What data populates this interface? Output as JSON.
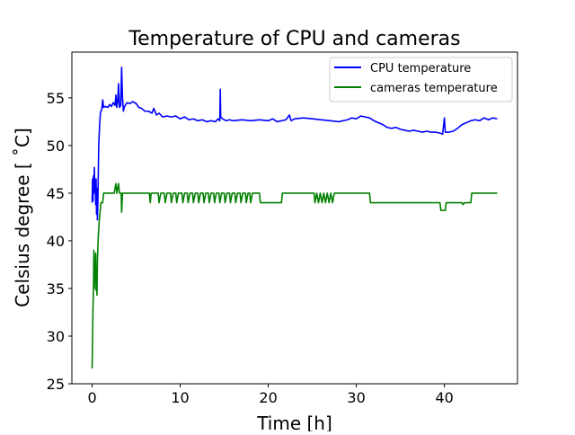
{
  "chart_data": {
    "type": "line",
    "title": "Temperature of CPU and cameras",
    "xlabel": "Time [h]",
    "ylabel": "Celsius degree [ ˚C]",
    "xlim": [
      -2.3,
      48.3
    ],
    "ylim": [
      25,
      59.8
    ],
    "xticks": [
      0,
      10,
      20,
      30,
      40
    ],
    "yticks": [
      25,
      30,
      35,
      40,
      45,
      50,
      55
    ],
    "grid": false,
    "legend_position": "top-right",
    "series": [
      {
        "name": "CPU temperature",
        "color": "#0000ff",
        "points": [
          [
            0.0,
            44.0
          ],
          [
            0.05,
            46.5
          ],
          [
            0.1,
            44.2
          ],
          [
            0.15,
            46.8
          ],
          [
            0.2,
            45.0
          ],
          [
            0.25,
            47.7
          ],
          [
            0.3,
            45.5
          ],
          [
            0.35,
            46.0
          ],
          [
            0.4,
            43.8
          ],
          [
            0.45,
            46.5
          ],
          [
            0.5,
            42.8
          ],
          [
            0.55,
            45.5
          ],
          [
            0.6,
            42.2
          ],
          [
            0.65,
            44.0
          ],
          [
            0.7,
            47.0
          ],
          [
            0.75,
            50.0
          ],
          [
            0.85,
            52.2
          ],
          [
            0.95,
            53.5
          ],
          [
            1.1,
            53.8
          ],
          [
            1.2,
            54.8
          ],
          [
            1.3,
            54.0
          ],
          [
            1.5,
            54.1
          ],
          [
            1.8,
            54.0
          ],
          [
            2.0,
            54.3
          ],
          [
            2.2,
            54.1
          ],
          [
            2.4,
            54.5
          ],
          [
            2.6,
            54.2
          ],
          [
            2.7,
            55.3
          ],
          [
            2.8,
            54.0
          ],
          [
            2.9,
            54.6
          ],
          [
            3.0,
            56.5
          ],
          [
            3.1,
            54.0
          ],
          [
            3.25,
            54.2
          ],
          [
            3.35,
            58.2
          ],
          [
            3.45,
            55.0
          ],
          [
            3.55,
            53.6
          ],
          [
            3.65,
            54.0
          ],
          [
            3.8,
            54.3
          ],
          [
            4.0,
            54.5
          ],
          [
            4.3,
            54.4
          ],
          [
            4.6,
            54.6
          ],
          [
            5.0,
            54.4
          ],
          [
            5.3,
            54.0
          ],
          [
            5.6,
            53.9
          ],
          [
            6.0,
            53.6
          ],
          [
            6.4,
            53.6
          ],
          [
            6.8,
            53.4
          ],
          [
            7.0,
            53.9
          ],
          [
            7.3,
            53.2
          ],
          [
            7.6,
            53.4
          ],
          [
            8.0,
            53.0
          ],
          [
            8.5,
            53.1
          ],
          [
            9.0,
            53.0
          ],
          [
            9.5,
            53.1
          ],
          [
            10.0,
            52.8
          ],
          [
            10.5,
            53.0
          ],
          [
            11.0,
            52.7
          ],
          [
            11.5,
            52.8
          ],
          [
            12.0,
            52.6
          ],
          [
            12.5,
            52.7
          ],
          [
            13.0,
            52.5
          ],
          [
            13.5,
            52.6
          ],
          [
            14.0,
            52.5
          ],
          [
            14.3,
            52.8
          ],
          [
            14.5,
            52.6
          ],
          [
            14.55,
            55.9
          ],
          [
            14.6,
            53.0
          ],
          [
            14.8,
            52.8
          ],
          [
            15.2,
            52.6
          ],
          [
            15.6,
            52.7
          ],
          [
            16.0,
            52.6
          ],
          [
            17.0,
            52.7
          ],
          [
            18.0,
            52.6
          ],
          [
            19.0,
            52.7
          ],
          [
            20.0,
            52.6
          ],
          [
            20.5,
            52.8
          ],
          [
            21.0,
            52.5
          ],
          [
            22.0,
            52.7
          ],
          [
            22.4,
            53.2
          ],
          [
            22.6,
            52.6
          ],
          [
            23.0,
            52.8
          ],
          [
            24.0,
            52.9
          ],
          [
            25.0,
            52.8
          ],
          [
            26.0,
            52.7
          ],
          [
            27.0,
            52.6
          ],
          [
            28.0,
            52.5
          ],
          [
            29.0,
            52.7
          ],
          [
            29.5,
            52.9
          ],
          [
            30.0,
            52.8
          ],
          [
            30.5,
            53.1
          ],
          [
            31.0,
            53.0
          ],
          [
            31.5,
            52.9
          ],
          [
            32.0,
            52.6
          ],
          [
            32.5,
            52.4
          ],
          [
            33.0,
            52.2
          ],
          [
            33.5,
            51.9
          ],
          [
            34.0,
            51.8
          ],
          [
            34.5,
            51.9
          ],
          [
            35.0,
            51.7
          ],
          [
            35.5,
            51.6
          ],
          [
            36.0,
            51.5
          ],
          [
            36.5,
            51.6
          ],
          [
            37.0,
            51.5
          ],
          [
            37.5,
            51.4
          ],
          [
            38.0,
            51.5
          ],
          [
            38.5,
            51.4
          ],
          [
            39.0,
            51.4
          ],
          [
            39.5,
            51.3
          ],
          [
            39.8,
            51.2
          ],
          [
            40.0,
            52.9
          ],
          [
            40.1,
            51.4
          ],
          [
            40.5,
            51.4
          ],
          [
            41.0,
            51.5
          ],
          [
            41.5,
            51.8
          ],
          [
            42.0,
            52.2
          ],
          [
            42.5,
            52.4
          ],
          [
            43.0,
            52.6
          ],
          [
            43.5,
            52.7
          ],
          [
            44.0,
            52.6
          ],
          [
            44.5,
            52.9
          ],
          [
            45.0,
            52.7
          ],
          [
            45.5,
            52.9
          ],
          [
            46.0,
            52.8
          ]
        ]
      },
      {
        "name": "cameras temperature",
        "color": "#008000",
        "points": [
          [
            0.0,
            26.6
          ],
          [
            0.05,
            30.0
          ],
          [
            0.1,
            33.0
          ],
          [
            0.15,
            35.0
          ],
          [
            0.2,
            39.0
          ],
          [
            0.25,
            35.0
          ],
          [
            0.3,
            38.0
          ],
          [
            0.35,
            36.0
          ],
          [
            0.4,
            38.7
          ],
          [
            0.45,
            34.8
          ],
          [
            0.5,
            36.5
          ],
          [
            0.55,
            34.3
          ],
          [
            0.6,
            38.0
          ],
          [
            0.7,
            40.5
          ],
          [
            0.8,
            42.0
          ],
          [
            0.9,
            43.0
          ],
          [
            1.0,
            44.0
          ],
          [
            1.2,
            44.0
          ],
          [
            1.3,
            45.0
          ],
          [
            1.8,
            45.0
          ],
          [
            2.0,
            45.0
          ],
          [
            2.5,
            45.0
          ],
          [
            2.7,
            46.0
          ],
          [
            2.8,
            45.0
          ],
          [
            3.0,
            46.0
          ],
          [
            3.1,
            45.0
          ],
          [
            3.3,
            45.0
          ],
          [
            3.35,
            43.0
          ],
          [
            3.45,
            45.0
          ],
          [
            3.6,
            45.0
          ],
          [
            4.0,
            45.0
          ],
          [
            5.0,
            45.0
          ],
          [
            6.0,
            45.0
          ],
          [
            6.5,
            45.0
          ],
          [
            6.6,
            44.0
          ],
          [
            6.7,
            45.0
          ],
          [
            7.0,
            45.0
          ],
          [
            7.5,
            45.0
          ],
          [
            7.6,
            44.0
          ],
          [
            7.8,
            45.0
          ],
          [
            8.2,
            45.0
          ],
          [
            8.3,
            44.0
          ],
          [
            8.5,
            45.0
          ],
          [
            8.9,
            45.0
          ],
          [
            9.0,
            44.0
          ],
          [
            9.2,
            45.0
          ],
          [
            9.5,
            45.0
          ],
          [
            9.6,
            44.0
          ],
          [
            9.8,
            45.0
          ],
          [
            10.2,
            45.0
          ],
          [
            10.3,
            44.0
          ],
          [
            10.5,
            45.0
          ],
          [
            10.8,
            45.0
          ],
          [
            10.9,
            44.0
          ],
          [
            11.1,
            45.0
          ],
          [
            11.4,
            45.0
          ],
          [
            11.5,
            44.0
          ],
          [
            11.7,
            45.0
          ],
          [
            12.0,
            45.0
          ],
          [
            12.1,
            44.0
          ],
          [
            12.3,
            45.0
          ],
          [
            12.6,
            45.0
          ],
          [
            12.7,
            44.0
          ],
          [
            12.9,
            45.0
          ],
          [
            13.2,
            45.0
          ],
          [
            13.3,
            44.0
          ],
          [
            13.5,
            45.0
          ],
          [
            13.8,
            45.0
          ],
          [
            13.9,
            44.0
          ],
          [
            14.1,
            45.0
          ],
          [
            14.4,
            45.0
          ],
          [
            14.5,
            44.0
          ],
          [
            14.7,
            45.0
          ],
          [
            15.0,
            45.0
          ],
          [
            15.1,
            44.0
          ],
          [
            15.3,
            45.0
          ],
          [
            15.6,
            45.0
          ],
          [
            15.7,
            44.0
          ],
          [
            15.9,
            45.0
          ],
          [
            16.2,
            45.0
          ],
          [
            16.3,
            44.0
          ],
          [
            16.5,
            45.0
          ],
          [
            16.8,
            45.0
          ],
          [
            16.9,
            44.0
          ],
          [
            17.1,
            45.0
          ],
          [
            17.4,
            45.0
          ],
          [
            17.5,
            44.0
          ],
          [
            17.7,
            45.0
          ],
          [
            17.9,
            45.0
          ],
          [
            18.0,
            44.0
          ],
          [
            18.2,
            45.0
          ],
          [
            19.0,
            45.0
          ],
          [
            19.1,
            44.0
          ],
          [
            21.0,
            44.0
          ],
          [
            21.5,
            44.0
          ],
          [
            21.6,
            45.0
          ],
          [
            25.0,
            45.0
          ],
          [
            25.2,
            45.0
          ],
          [
            25.3,
            44.0
          ],
          [
            25.5,
            45.0
          ],
          [
            25.7,
            44.0
          ],
          [
            25.9,
            45.0
          ],
          [
            26.1,
            44.0
          ],
          [
            26.3,
            45.0
          ],
          [
            26.5,
            44.0
          ],
          [
            26.7,
            45.0
          ],
          [
            26.9,
            44.0
          ],
          [
            27.1,
            45.0
          ],
          [
            27.3,
            44.0
          ],
          [
            27.5,
            45.0
          ],
          [
            31.5,
            45.0
          ],
          [
            31.6,
            44.0
          ],
          [
            39.0,
            44.0
          ],
          [
            39.5,
            44.0
          ],
          [
            39.6,
            43.2
          ],
          [
            40.1,
            43.2
          ],
          [
            40.2,
            44.0
          ],
          [
            42.0,
            44.0
          ],
          [
            42.1,
            43.8
          ],
          [
            42.3,
            44.0
          ],
          [
            43.0,
            44.0
          ],
          [
            43.1,
            45.0
          ],
          [
            46.0,
            45.0
          ]
        ]
      }
    ]
  }
}
